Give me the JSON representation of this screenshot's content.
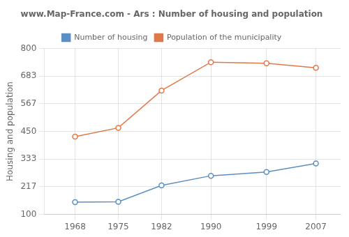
{
  "chart_data": {
    "type": "line",
    "title": "www.Map-France.com - Ars : Number of housing and population",
    "y_label": "Housing and population",
    "x": [
      1968,
      1975,
      1982,
      1990,
      1999,
      2007
    ],
    "series": [
      {
        "name": "Number of housing",
        "color": "#5b8ec4",
        "values": [
          152,
          153,
          222,
          263,
          279,
          315
        ]
      },
      {
        "name": "Population of the municipality",
        "color": "#e07848",
        "values": [
          428,
          465,
          622,
          742,
          737,
          718
        ]
      }
    ],
    "xlim": [
      1963,
      2011
    ],
    "xticks": [
      1968,
      1975,
      1982,
      1990,
      1999,
      2007
    ],
    "ylim": [
      100,
      800
    ],
    "yticks": [
      100,
      217,
      333,
      450,
      567,
      683,
      800
    ],
    "grid": true,
    "legend": "top",
    "marker": "circle"
  }
}
